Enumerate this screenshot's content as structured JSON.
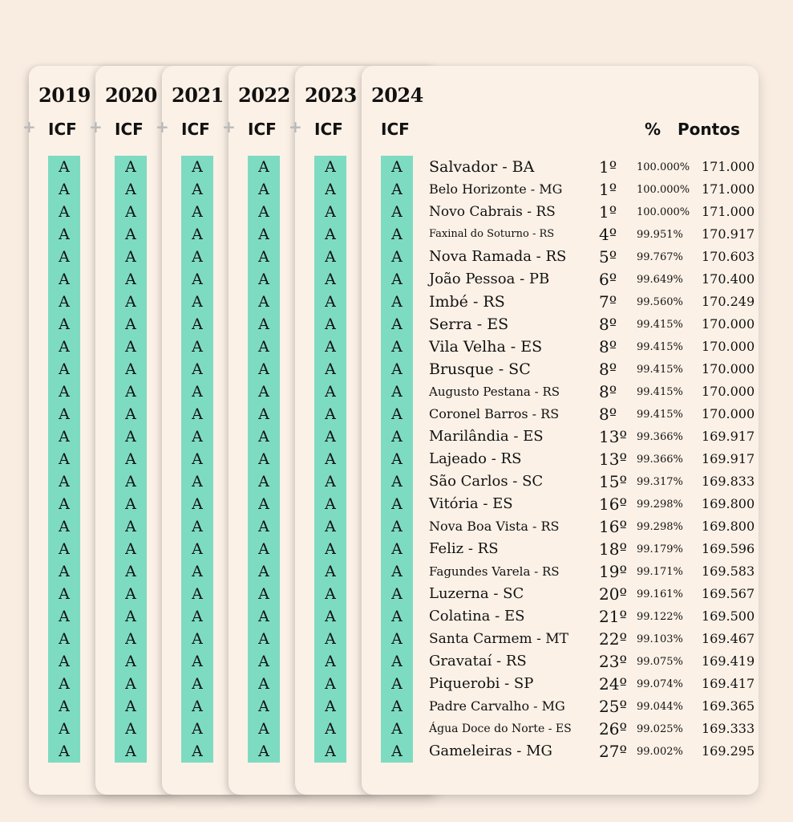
{
  "years": [
    "2019",
    "2020",
    "2021",
    "2022",
    "2023",
    "2024"
  ],
  "icf_header": "ICF",
  "add_symbol": "+",
  "percent_header": "%",
  "points_header": "Pontos",
  "grade": "A",
  "grade_color": "#7ddbc1",
  "background_color": "#f9ede2",
  "rows": [
    {
      "city": "Salvador - BA",
      "rank": "1º",
      "percent": "100.000%",
      "points": "171.000"
    },
    {
      "city": "Belo Horizonte - MG",
      "rank": "1º",
      "percent": "100.000%",
      "points": "171.000"
    },
    {
      "city": "Novo Cabrais - RS",
      "rank": "1º",
      "percent": "100.000%",
      "points": "171.000"
    },
    {
      "city": "Faxinal do Soturno - RS",
      "rank": "4º",
      "percent": "99.951%",
      "points": "170.917"
    },
    {
      "city": "Nova Ramada - RS",
      "rank": "5º",
      "percent": "99.767%",
      "points": "170.603"
    },
    {
      "city": "João Pessoa - PB",
      "rank": "6º",
      "percent": "99.649%",
      "points": "170.400"
    },
    {
      "city": "Imbé - RS",
      "rank": "7º",
      "percent": "99.560%",
      "points": "170.249"
    },
    {
      "city": "Serra - ES",
      "rank": "8º",
      "percent": "99.415%",
      "points": "170.000"
    },
    {
      "city": "Vila Velha - ES",
      "rank": "8º",
      "percent": "99.415%",
      "points": "170.000"
    },
    {
      "city": "Brusque - SC",
      "rank": "8º",
      "percent": "99.415%",
      "points": "170.000"
    },
    {
      "city": "Augusto Pestana - RS",
      "rank": "8º",
      "percent": "99.415%",
      "points": "170.000"
    },
    {
      "city": "Coronel Barros - RS",
      "rank": "8º",
      "percent": "99.415%",
      "points": "170.000"
    },
    {
      "city": "Marilândia - ES",
      "rank": "13º",
      "percent": "99.366%",
      "points": "169.917"
    },
    {
      "city": "Lajeado - RS",
      "rank": "13º",
      "percent": "99.366%",
      "points": "169.917"
    },
    {
      "city": "São Carlos - SC",
      "rank": "15º",
      "percent": "99.317%",
      "points": "169.833"
    },
    {
      "city": "Vitória - ES",
      "rank": "16º",
      "percent": "99.298%",
      "points": "169.800"
    },
    {
      "city": "Nova Boa Vista - RS",
      "rank": "16º",
      "percent": "99.298%",
      "points": "169.800"
    },
    {
      "city": "Feliz - RS",
      "rank": "18º",
      "percent": "99.179%",
      "points": "169.596"
    },
    {
      "city": "Fagundes Varela - RS",
      "rank": "19º",
      "percent": "99.171%",
      "points": "169.583"
    },
    {
      "city": "Luzerna - SC",
      "rank": "20º",
      "percent": "99.161%",
      "points": "169.567"
    },
    {
      "city": "Colatina - ES",
      "rank": "21º",
      "percent": "99.122%",
      "points": "169.500"
    },
    {
      "city": "Santa Carmem - MT",
      "rank": "22º",
      "percent": "99.103%",
      "points": "169.467"
    },
    {
      "city": "Gravataí - RS",
      "rank": "23º",
      "percent": "99.075%",
      "points": "169.419"
    },
    {
      "city": "Piquerobi - SP",
      "rank": "24º",
      "percent": "99.074%",
      "points": "169.417"
    },
    {
      "city": "Padre Carvalho - MG",
      "rank": "25º",
      "percent": "99.044%",
      "points": "169.365"
    },
    {
      "city": "Água Doce do Norte - ES",
      "rank": "26º",
      "percent": "99.025%",
      "points": "169.333"
    },
    {
      "city": "Gameleiras - MG",
      "rank": "27º",
      "percent": "99.002%",
      "points": "169.295"
    }
  ]
}
